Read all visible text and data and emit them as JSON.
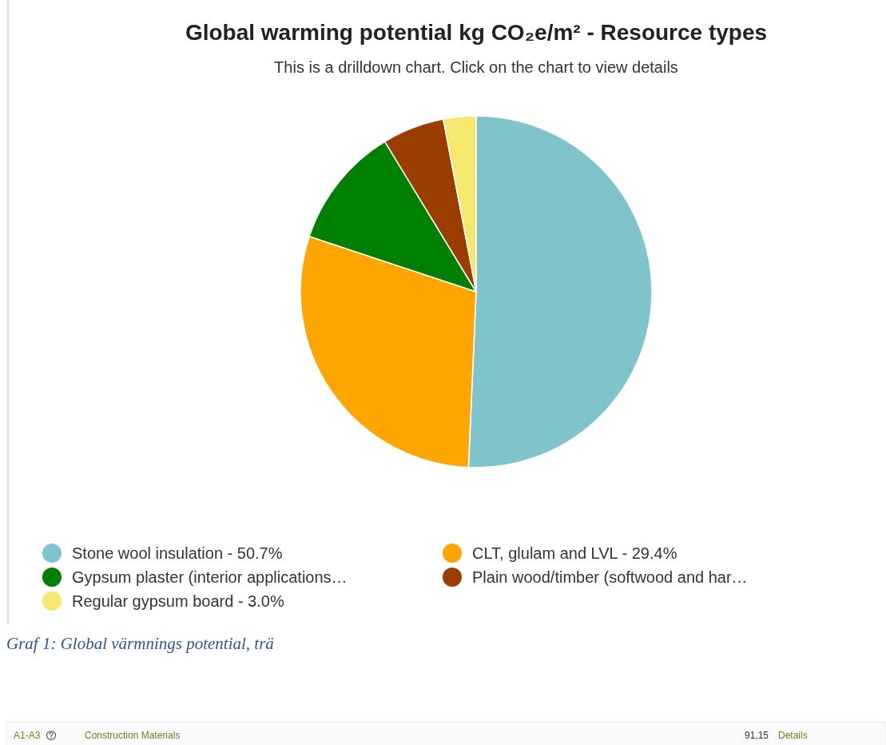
{
  "chart_data": {
    "type": "pie",
    "title": "Global warming potential kg CO₂e/m² - Resource types",
    "subtitle": "This is a drilldown chart. Click on the chart to view details",
    "categories": [
      "Stone wool insulation - 50.7%",
      "CLT, glulam and LVL - 29.4%",
      "Gypsum plaster (interior applications…",
      "Plain wood/timber (softwood and har…",
      "Regular gypsum board - 3.0%"
    ],
    "values": [
      50.7,
      29.4,
      11.2,
      5.7,
      3.0
    ],
    "colors": [
      "#7fc3cb",
      "#ffa500",
      "#008000",
      "#993d00",
      "#f5e86e"
    ],
    "legend": "bottom",
    "annotations": [
      "Graf 1: Global värmnings potential, trä",
      "A1-A3",
      "Construction Materials",
      "91,15",
      "Details"
    ]
  }
}
